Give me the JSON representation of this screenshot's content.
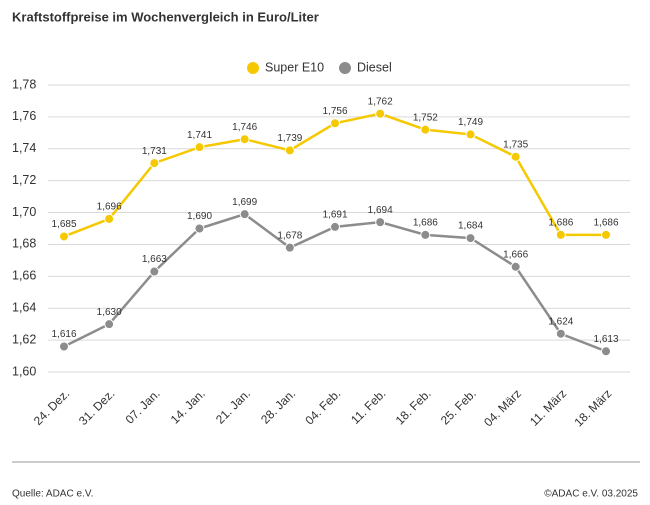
{
  "chart_data": {
    "type": "line",
    "title": "Kraftstoffpreise im Wochenvergleich in Euro/Liter",
    "categories": [
      "24. Dez.",
      "31. Dez.",
      "07. Jan.",
      "14. Jan.",
      "21. Jan.",
      "28. Jan.",
      "04. Feb.",
      "11. Feb.",
      "18. Feb.",
      "25. Feb.",
      "04. März",
      "11. März",
      "18. März"
    ],
    "series": [
      {
        "name": "Super E10",
        "color": "#f5c800",
        "values": [
          1.685,
          1.696,
          1.731,
          1.741,
          1.746,
          1.739,
          1.756,
          1.762,
          1.752,
          1.749,
          1.735,
          1.686,
          1.686
        ],
        "value_labels": [
          "1,685",
          "1,696",
          "1,731",
          "1,741",
          "1,746",
          "1,739",
          "1,756",
          "1,762",
          "1,752",
          "1,749",
          "1,735",
          "1,686",
          "1,686"
        ]
      },
      {
        "name": "Diesel",
        "color": "#8c8c8c",
        "values": [
          1.616,
          1.63,
          1.663,
          1.69,
          1.699,
          1.678,
          1.691,
          1.694,
          1.686,
          1.684,
          1.666,
          1.624,
          1.613
        ],
        "value_labels": [
          "1,616",
          "1,630",
          "1,663",
          "1,690",
          "1,699",
          "1,678",
          "1,691",
          "1,694",
          "1,686",
          "1,684",
          "1,666",
          "1,624",
          "1,613"
        ]
      }
    ],
    "ylim": [
      1.6,
      1.78
    ],
    "yticks": [
      {
        "value": 1.6,
        "label": "1,60"
      },
      {
        "value": 1.62,
        "label": "1,62"
      },
      {
        "value": 1.64,
        "label": "1,64"
      },
      {
        "value": 1.66,
        "label": "1,66"
      },
      {
        "value": 1.68,
        "label": "1,68"
      },
      {
        "value": 1.7,
        "label": "1,70"
      },
      {
        "value": 1.72,
        "label": "1,72"
      },
      {
        "value": 1.74,
        "label": "1,74"
      },
      {
        "value": 1.76,
        "label": "1,76"
      },
      {
        "value": 1.78,
        "label": "1,78"
      }
    ],
    "grid": true,
    "legend": "top",
    "source": "Quelle: ADAC e.V.",
    "credit": "©ADAC e.V. 03.2025"
  }
}
